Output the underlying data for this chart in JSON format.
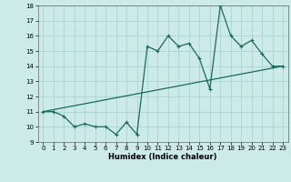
{
  "x": [
    0,
    1,
    2,
    3,
    4,
    5,
    6,
    7,
    8,
    9,
    10,
    11,
    12,
    13,
    14,
    15,
    16,
    17,
    18,
    19,
    20,
    21,
    22,
    23
  ],
  "y_line": [
    11,
    11,
    10.7,
    10,
    10.2,
    10,
    10,
    9.5,
    10.3,
    9.5,
    15.3,
    15,
    16,
    15.3,
    15.5,
    14.5,
    12.5,
    18,
    16,
    15.3,
    15.7,
    14.8,
    14,
    14
  ],
  "trend_x": [
    0,
    23
  ],
  "trend_y": [
    11.0,
    14.0
  ],
  "bg_color": "#cceae7",
  "grid_color": "#aad4d0",
  "line_color": "#1a6b5a",
  "trend_color": "#1a6b5a",
  "xlabel": "Humidex (Indice chaleur)",
  "ylim": [
    9,
    18
  ],
  "xlim": [
    -0.5,
    23.5
  ],
  "yticks": [
    9,
    10,
    11,
    12,
    13,
    14,
    15,
    16,
    17,
    18
  ],
  "xticks": [
    0,
    1,
    2,
    3,
    4,
    5,
    6,
    7,
    8,
    9,
    10,
    11,
    12,
    13,
    14,
    15,
    16,
    17,
    18,
    19,
    20,
    21,
    22,
    23
  ]
}
